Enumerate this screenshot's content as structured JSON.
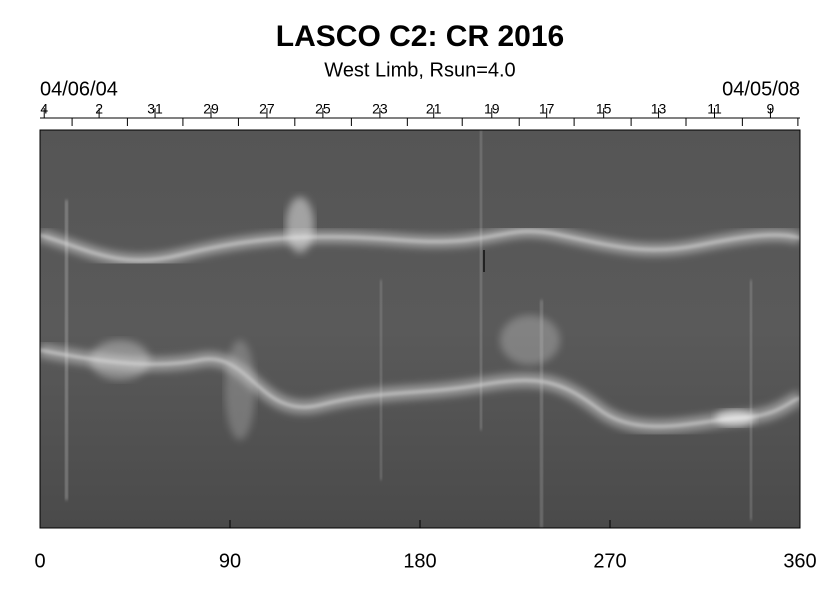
{
  "chart_data": {
    "type": "synoptic-map",
    "title": "LASCO C2: CR 2016",
    "subtitle": "West Limb, Rsun=4.0",
    "start_date": "04/06/04",
    "end_date": "04/05/08",
    "xlim": [
      0,
      360
    ],
    "xticks": [
      0,
      90,
      180,
      270,
      360
    ],
    "top_ticks": [
      {
        "value": 2,
        "label": "4"
      },
      {
        "value": 28,
        "label": "2"
      },
      {
        "value": 54.5,
        "label": "31"
      },
      {
        "value": 81,
        "label": "29"
      },
      {
        "value": 107.5,
        "label": "27"
      },
      {
        "value": 134,
        "label": "25"
      },
      {
        "value": 161,
        "label": "23"
      },
      {
        "value": 186.5,
        "label": "21"
      },
      {
        "value": 214,
        "label": "19"
      },
      {
        "value": 240,
        "label": "17"
      },
      {
        "value": 267,
        "label": "15"
      },
      {
        "value": 293,
        "label": "13"
      },
      {
        "value": 319.5,
        "label": "11"
      },
      {
        "value": 346,
        "label": "9"
      }
    ],
    "top_minor_ticks": [
      15.2,
      41.4,
      67.7,
      94,
      120.7,
      147.5,
      174,
      200,
      227,
      253,
      280,
      306,
      332.7,
      359
    ]
  }
}
